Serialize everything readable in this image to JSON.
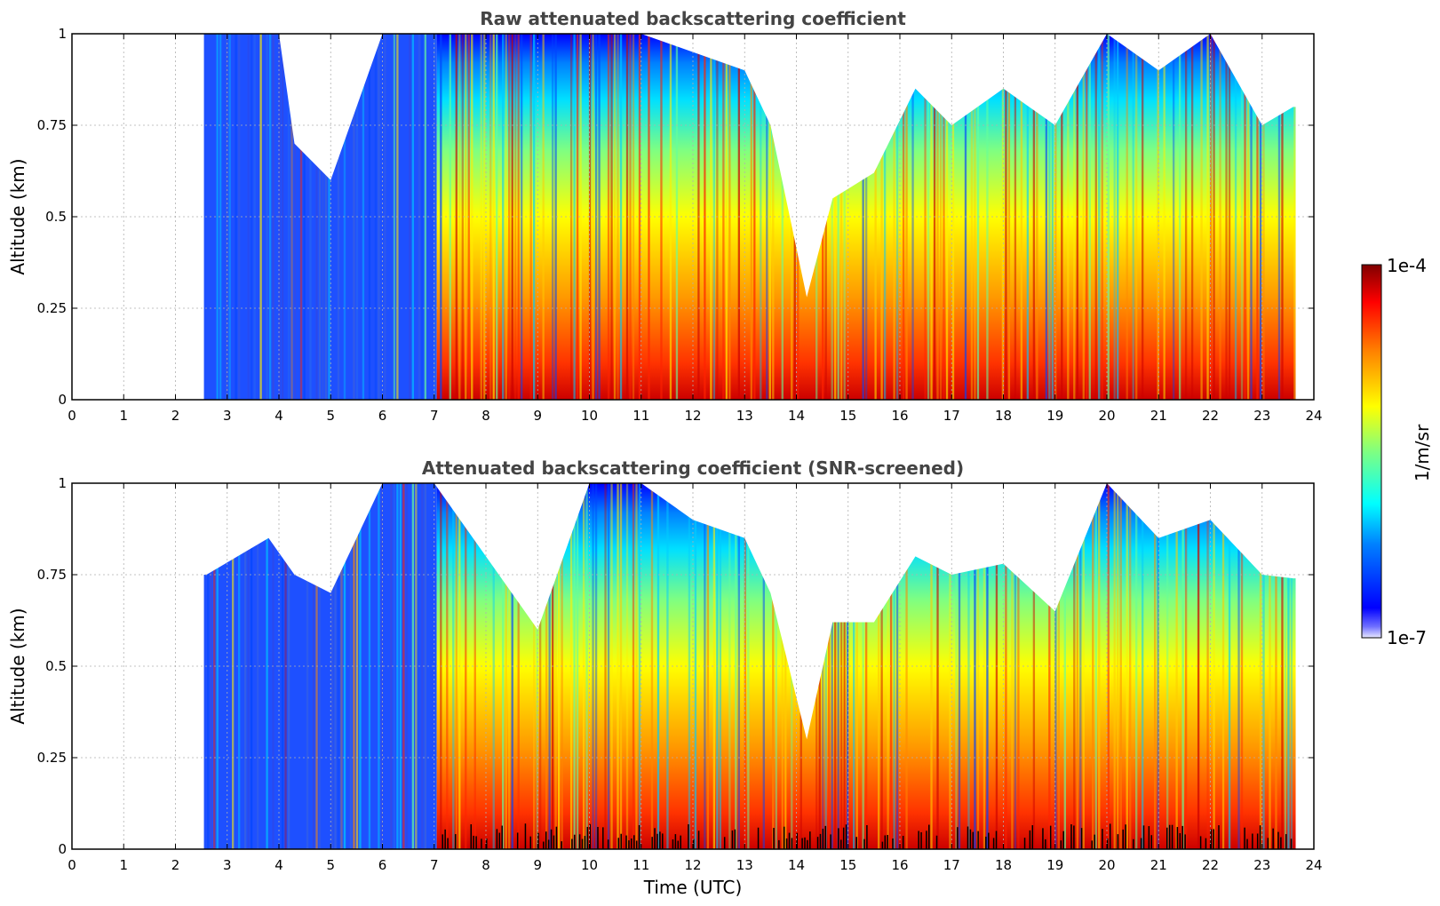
{
  "chart_data": [
    {
      "type": "heatmap",
      "title": "Raw attenuated backscattering coefficient",
      "xlabel": "",
      "ylabel": "Altitude (km)",
      "xlim": [
        0,
        24
      ],
      "ylim": [
        0,
        1
      ],
      "x_ticks": [
        "0",
        "1",
        "2",
        "3",
        "4",
        "5",
        "6",
        "7",
        "8",
        "9",
        "10",
        "11",
        "12",
        "13",
        "14",
        "15",
        "16",
        "17",
        "18",
        "19",
        "20",
        "21",
        "22",
        "23",
        "24"
      ],
      "y_ticks": [
        "0",
        "0.25",
        "0.5",
        "0.75",
        "1"
      ],
      "y_tick_values": [
        0,
        0.25,
        0.5,
        0.75,
        1
      ],
      "grid": true,
      "data_time_range": [
        2.55,
        23.65
      ],
      "signal_top_km": [
        [
          2.6,
          1.0
        ],
        [
          4.0,
          1.0
        ],
        [
          4.3,
          0.7
        ],
        [
          5.0,
          0.6
        ],
        [
          6.0,
          1.0
        ],
        [
          7.0,
          1.0
        ],
        [
          9.0,
          1.0
        ],
        [
          10.0,
          1.0
        ],
        [
          11.0,
          1.0
        ],
        [
          12.0,
          0.95
        ],
        [
          13.0,
          0.9
        ],
        [
          13.5,
          0.75
        ],
        [
          14.2,
          0.28
        ],
        [
          14.7,
          0.55
        ],
        [
          15.5,
          0.62
        ],
        [
          16.3,
          0.85
        ],
        [
          17.0,
          0.75
        ],
        [
          18.0,
          0.85
        ],
        [
          19.0,
          0.75
        ],
        [
          20.0,
          1.0
        ],
        [
          21.0,
          0.9
        ],
        [
          22.0,
          1.0
        ],
        [
          23.0,
          0.75
        ],
        [
          23.6,
          0.8
        ]
      ],
      "screened": false
    },
    {
      "type": "heatmap",
      "title": "Attenuated backscattering coefficient (SNR-screened)",
      "xlabel": "Time (UTC)",
      "ylabel": "Altitude (km)",
      "xlim": [
        0,
        24
      ],
      "ylim": [
        0,
        1
      ],
      "x_ticks": [
        "0",
        "1",
        "2",
        "3",
        "4",
        "5",
        "6",
        "7",
        "8",
        "9",
        "10",
        "11",
        "12",
        "13",
        "14",
        "15",
        "16",
        "17",
        "18",
        "19",
        "20",
        "21",
        "22",
        "23",
        "24"
      ],
      "y_ticks": [
        "0",
        "0.25",
        "0.5",
        "0.75",
        "1"
      ],
      "y_tick_values": [
        0,
        0.25,
        0.5,
        0.75,
        1
      ],
      "grid": true,
      "data_time_range": [
        2.55,
        23.65
      ],
      "signal_top_km": [
        [
          2.6,
          0.75
        ],
        [
          3.8,
          0.85
        ],
        [
          4.3,
          0.75
        ],
        [
          5.0,
          0.7
        ],
        [
          6.0,
          1.0
        ],
        [
          7.0,
          1.0
        ],
        [
          9.0,
          0.6
        ],
        [
          10.0,
          1.0
        ],
        [
          11.0,
          1.0
        ],
        [
          12.0,
          0.9
        ],
        [
          13.0,
          0.85
        ],
        [
          13.5,
          0.7
        ],
        [
          14.2,
          0.3
        ],
        [
          14.7,
          0.62
        ],
        [
          15.5,
          0.62
        ],
        [
          16.3,
          0.8
        ],
        [
          17.0,
          0.75
        ],
        [
          18.0,
          0.78
        ],
        [
          19.0,
          0.65
        ],
        [
          20.0,
          1.0
        ],
        [
          21.0,
          0.85
        ],
        [
          22.0,
          0.9
        ],
        [
          23.0,
          0.75
        ],
        [
          23.6,
          0.74
        ]
      ],
      "screened": true
    }
  ],
  "colorbar": {
    "label": "1/m/sr",
    "max_label": "1e-4",
    "min_label": "1e-7",
    "colormap": "jet",
    "scale": "log"
  }
}
